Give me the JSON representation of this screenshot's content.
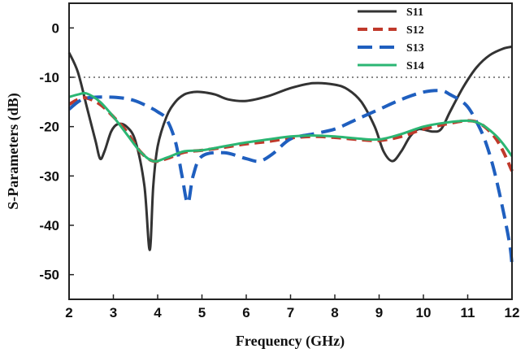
{
  "chart_data": {
    "type": "line",
    "title": "",
    "xlabel": "Frequency (GHz)",
    "ylabel": "S-Parameters (dB)",
    "xlim": [
      2,
      12
    ],
    "ylim": [
      -55,
      5
    ],
    "x_ticks": [
      2,
      3,
      4,
      5,
      6,
      7,
      8,
      9,
      10,
      11,
      12
    ],
    "y_ticks": [
      0,
      -10,
      -20,
      -30,
      -40,
      -50
    ],
    "legend_position": "top-right",
    "reference_line": {
      "y": -10,
      "style": "dotted",
      "color": "#888888"
    },
    "series": [
      {
        "name": "S11",
        "color": "#333333",
        "style": "solid",
        "points": [
          [
            2.0,
            -5
          ],
          [
            2.2,
            -9
          ],
          [
            2.4,
            -16
          ],
          [
            2.6,
            -23
          ],
          [
            2.7,
            -26.5
          ],
          [
            2.8,
            -25
          ],
          [
            2.95,
            -21
          ],
          [
            3.1,
            -19.5
          ],
          [
            3.3,
            -20
          ],
          [
            3.5,
            -23
          ],
          [
            3.7,
            -32
          ],
          [
            3.82,
            -45
          ],
          [
            3.9,
            -32
          ],
          [
            4.0,
            -24
          ],
          [
            4.2,
            -18
          ],
          [
            4.4,
            -15
          ],
          [
            4.6,
            -13.5
          ],
          [
            4.8,
            -13
          ],
          [
            5.0,
            -13
          ],
          [
            5.3,
            -13.5
          ],
          [
            5.6,
            -14.5
          ],
          [
            6.0,
            -14.8
          ],
          [
            6.5,
            -13.8
          ],
          [
            7.0,
            -12.2
          ],
          [
            7.5,
            -11.2
          ],
          [
            8.0,
            -11.5
          ],
          [
            8.3,
            -12.5
          ],
          [
            8.6,
            -15
          ],
          [
            8.9,
            -20
          ],
          [
            9.1,
            -25
          ],
          [
            9.3,
            -27
          ],
          [
            9.5,
            -25
          ],
          [
            9.7,
            -22
          ],
          [
            9.9,
            -20.5
          ],
          [
            10.2,
            -21
          ],
          [
            10.4,
            -20.5
          ],
          [
            10.6,
            -17
          ],
          [
            10.9,
            -12
          ],
          [
            11.2,
            -8
          ],
          [
            11.5,
            -5.5
          ],
          [
            11.8,
            -4.2
          ],
          [
            12.0,
            -3.8
          ]
        ]
      },
      {
        "name": "S12",
        "color": "#c0392b",
        "style": "dash",
        "points": [
          [
            2.0,
            -15.5
          ],
          [
            2.2,
            -14.5
          ],
          [
            2.4,
            -14.2
          ],
          [
            2.7,
            -15.5
          ],
          [
            3.0,
            -18
          ],
          [
            3.3,
            -21
          ],
          [
            3.6,
            -25
          ],
          [
            3.9,
            -27
          ],
          [
            4.2,
            -26.5
          ],
          [
            4.6,
            -25.2
          ],
          [
            5.0,
            -24.8
          ],
          [
            5.5,
            -24.2
          ],
          [
            6.0,
            -23.5
          ],
          [
            6.5,
            -23
          ],
          [
            7.0,
            -22.3
          ],
          [
            7.5,
            -22
          ],
          [
            8.0,
            -22.2
          ],
          [
            8.5,
            -22.6
          ],
          [
            9.0,
            -22.8
          ],
          [
            9.5,
            -22
          ],
          [
            10.0,
            -20.5
          ],
          [
            10.5,
            -19.5
          ],
          [
            11.0,
            -18.8
          ],
          [
            11.3,
            -19.5
          ],
          [
            11.6,
            -22
          ],
          [
            11.8,
            -25
          ],
          [
            12.0,
            -29
          ]
        ]
      },
      {
        "name": "S13",
        "color": "#1f5fbf",
        "style": "longdash",
        "points": [
          [
            2.0,
            -16.5
          ],
          [
            2.2,
            -15
          ],
          [
            2.4,
            -14.2
          ],
          [
            2.8,
            -14
          ],
          [
            3.2,
            -14.2
          ],
          [
            3.5,
            -14.8
          ],
          [
            3.8,
            -16
          ],
          [
            4.0,
            -17
          ],
          [
            4.2,
            -18.5
          ],
          [
            4.4,
            -23
          ],
          [
            4.55,
            -30
          ],
          [
            4.68,
            -35.5
          ],
          [
            4.8,
            -30
          ],
          [
            5.0,
            -26
          ],
          [
            5.5,
            -25.3
          ],
          [
            6.0,
            -26.5
          ],
          [
            6.3,
            -27
          ],
          [
            6.6,
            -25.5
          ],
          [
            7.0,
            -22.5
          ],
          [
            7.5,
            -21.5
          ],
          [
            8.0,
            -20.5
          ],
          [
            8.5,
            -18.5
          ],
          [
            9.0,
            -16.5
          ],
          [
            9.5,
            -14.5
          ],
          [
            10.0,
            -13
          ],
          [
            10.4,
            -12.7
          ],
          [
            10.6,
            -13.5
          ],
          [
            10.8,
            -14.5
          ],
          [
            11.0,
            -16
          ],
          [
            11.2,
            -19
          ],
          [
            11.4,
            -23
          ],
          [
            11.6,
            -29
          ],
          [
            11.8,
            -37
          ],
          [
            11.95,
            -44
          ],
          [
            12.0,
            -48
          ]
        ]
      },
      {
        "name": "S14",
        "color": "#2bb673",
        "style": "solid",
        "points": [
          [
            2.0,
            -14
          ],
          [
            2.2,
            -13.5
          ],
          [
            2.4,
            -13.3
          ],
          [
            2.7,
            -15
          ],
          [
            3.0,
            -18
          ],
          [
            3.3,
            -21.5
          ],
          [
            3.6,
            -25
          ],
          [
            3.9,
            -27
          ],
          [
            4.2,
            -26.3
          ],
          [
            4.6,
            -25
          ],
          [
            5.0,
            -24.8
          ],
          [
            5.5,
            -24
          ],
          [
            6.0,
            -23.2
          ],
          [
            6.5,
            -22.6
          ],
          [
            7.0,
            -22
          ],
          [
            7.5,
            -21.8
          ],
          [
            8.0,
            -22
          ],
          [
            8.5,
            -22.4
          ],
          [
            9.0,
            -22.6
          ],
          [
            9.5,
            -21.5
          ],
          [
            10.0,
            -20
          ],
          [
            10.5,
            -19.2
          ],
          [
            11.0,
            -18.8
          ],
          [
            11.3,
            -19.5
          ],
          [
            11.6,
            -21.5
          ],
          [
            11.8,
            -23.5
          ],
          [
            12.0,
            -26
          ]
        ]
      }
    ]
  }
}
